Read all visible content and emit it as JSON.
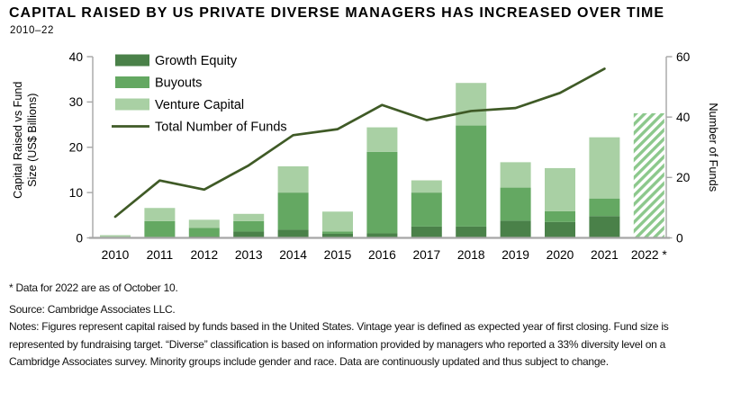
{
  "title": "CAPITAL RAISED BY US PRIVATE DIVERSE MANAGERS HAS INCREASED OVER TIME",
  "subtitle": "2010–22",
  "footnotes": {
    "star_note": "* Data for 2022 are as of October 10.",
    "source": "Source: Cambridge Associates LLC.",
    "notes": "Notes: Figures represent capital raised by funds based in the United States. Vintage year is defined as expected year of first closing. Fund size is represented by fundraising target. “Diverse” classification is based on information provided by managers who reported a 33% diversity level on a Cambridge Associates survey. Minority groups include gender and race. Data are continuously updated and thus subject to change."
  },
  "chart_data": {
    "type": "bar",
    "subtype": "stacked-bars-with-line",
    "categories": [
      "2010",
      "2011",
      "2012",
      "2013",
      "2014",
      "2015",
      "2016",
      "2017",
      "2018",
      "2019",
      "2020",
      "2021",
      "2022 *"
    ],
    "bar_series": [
      {
        "name": "Growth Equity",
        "color": "#4a8149",
        "values": [
          0,
          0.2,
          0.3,
          1.4,
          1.8,
          0.9,
          1.0,
          2.5,
          2.5,
          3.8,
          3.5,
          4.8,
          null
        ]
      },
      {
        "name": "Buyouts",
        "color": "#64a862",
        "values": [
          0,
          3.5,
          1.9,
          2.3,
          8.2,
          0.5,
          18.0,
          7.5,
          22.3,
          7.3,
          2.4,
          3.9,
          null
        ]
      },
      {
        "name": "Venture Capital",
        "color": "#a9d0a4",
        "values": [
          0.6,
          2.9,
          1.8,
          1.6,
          5.8,
          4.4,
          5.4,
          2.7,
          9.4,
          5.6,
          9.5,
          13.5,
          null
        ]
      }
    ],
    "hatched_bar": {
      "category": "2022 *",
      "total": 27.5,
      "stripe_color": "#8cc88c"
    },
    "line_series": {
      "name": "Total Number of Funds",
      "color": "#3f5a26",
      "axis": "right",
      "values": [
        7,
        19,
        16,
        24,
        34,
        36,
        44,
        39,
        42,
        43,
        48,
        56,
        null
      ]
    },
    "left_axis": {
      "label_lines": [
        "Capital Raised vs Fund",
        "Size (US$ Billions)"
      ],
      "ticks": [
        0,
        10,
        20,
        30,
        40
      ],
      "range": [
        0,
        40
      ]
    },
    "right_axis": {
      "label_lines": [
        "Number of Funds"
      ],
      "ticks": [
        0,
        20,
        40,
        60
      ],
      "range": [
        0,
        60
      ]
    },
    "axis_color": "#a6a6a6",
    "legend_position": "top-left-inside",
    "grid": false
  }
}
